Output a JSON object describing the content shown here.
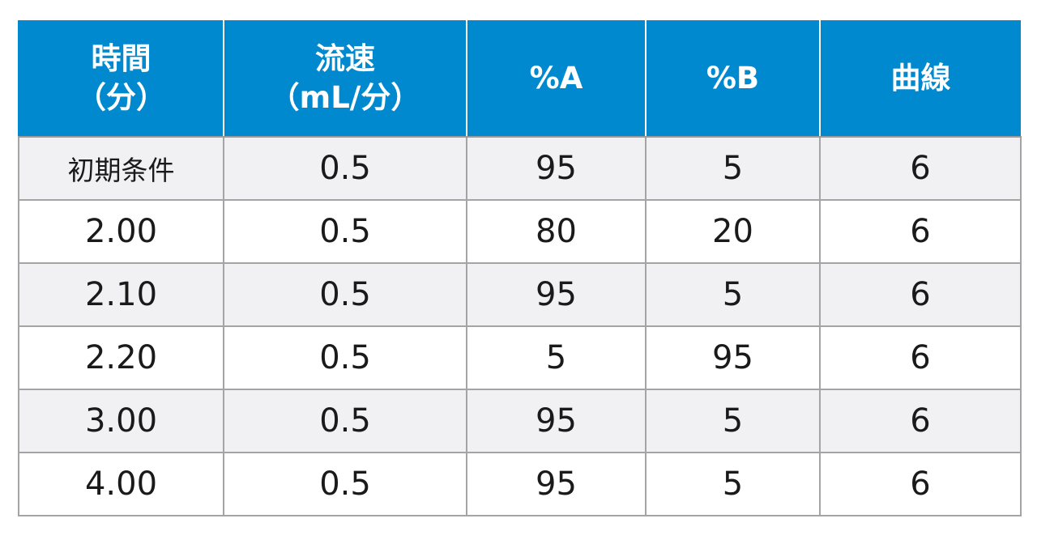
{
  "table": {
    "headers": [
      {
        "line1": "時間",
        "line2": "（分）"
      },
      {
        "line1": "流速",
        "line2": "（mL/分）"
      },
      {
        "line1": "%A",
        "line2": ""
      },
      {
        "line1": "%B",
        "line2": ""
      },
      {
        "line1": "曲線",
        "line2": ""
      }
    ],
    "rows": [
      [
        "初期条件",
        "0.5",
        "95",
        "5",
        "6"
      ],
      [
        "2.00",
        "0.5",
        "80",
        "20",
        "6"
      ],
      [
        "2.10",
        "0.5",
        "95",
        "5",
        "6"
      ],
      [
        "2.20",
        "0.5",
        "5",
        "95",
        "6"
      ],
      [
        "3.00",
        "0.5",
        "95",
        "5",
        "6"
      ],
      [
        "4.00",
        "0.5",
        "95",
        "5",
        "6"
      ]
    ]
  },
  "colors": {
    "header_bg": "#0089cf",
    "header_text": "#ffffff",
    "row_shade": "#f1f1f3",
    "grid": "#a4a4a4"
  }
}
